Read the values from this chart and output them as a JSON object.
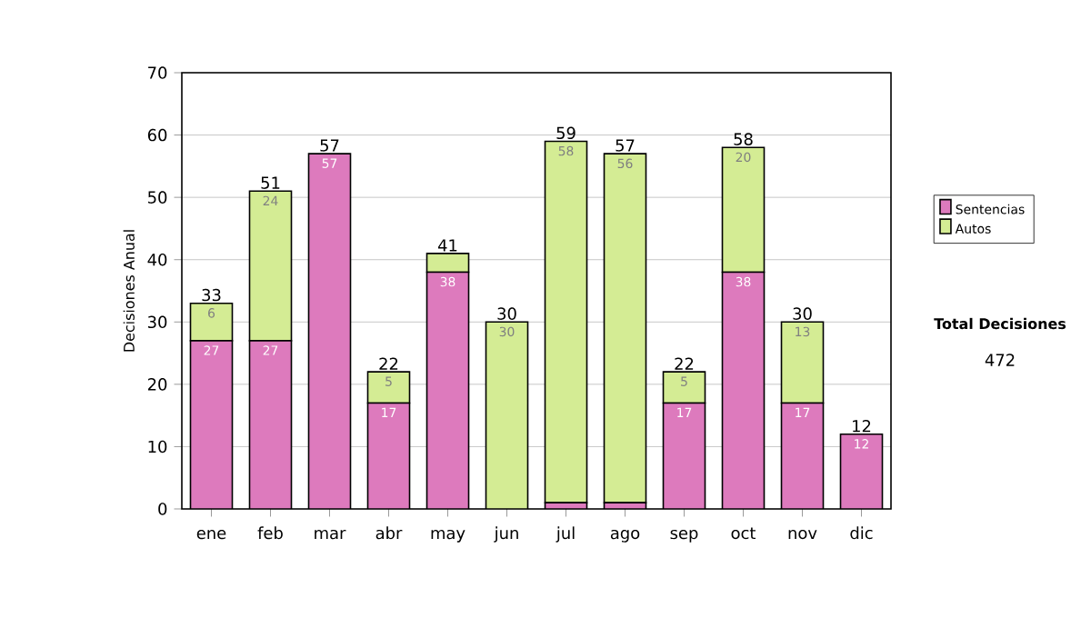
{
  "chart_data": {
    "type": "bar",
    "stacked": true,
    "ylabel": "Decisiones Anual",
    "categories": [
      "ene",
      "feb",
      "mar",
      "abr",
      "may",
      "jun",
      "jul",
      "ago",
      "sep",
      "oct",
      "nov",
      "dic"
    ],
    "series": [
      {
        "name": "Sentencias",
        "color": "#dd7abd",
        "values": [
          27,
          27,
          57,
          17,
          38,
          0,
          1,
          1,
          17,
          38,
          17,
          12
        ],
        "value_labels": [
          "27",
          "27",
          "57",
          "17",
          "38",
          null,
          null,
          null,
          "17",
          "38",
          "17",
          "12"
        ]
      },
      {
        "name": "Autos",
        "color": "#d4ec94",
        "values": [
          6,
          24,
          0,
          5,
          3,
          30,
          58,
          56,
          5,
          20,
          13,
          0
        ],
        "value_labels": [
          "6",
          "24",
          null,
          "5",
          null,
          "30",
          "58",
          "56",
          "5",
          "20",
          "13",
          null
        ]
      }
    ],
    "totals": [
      "33",
      "51",
      "57",
      "22",
      "41",
      "30",
      "59",
      "57",
      "22",
      "58",
      "30",
      "12"
    ],
    "ylim": [
      0,
      70
    ],
    "yticks": [
      0,
      10,
      20,
      30,
      40,
      50,
      60,
      70
    ],
    "grid": "y",
    "legend": "right",
    "annotations": [
      "Total Decisiones",
      "472"
    ]
  }
}
